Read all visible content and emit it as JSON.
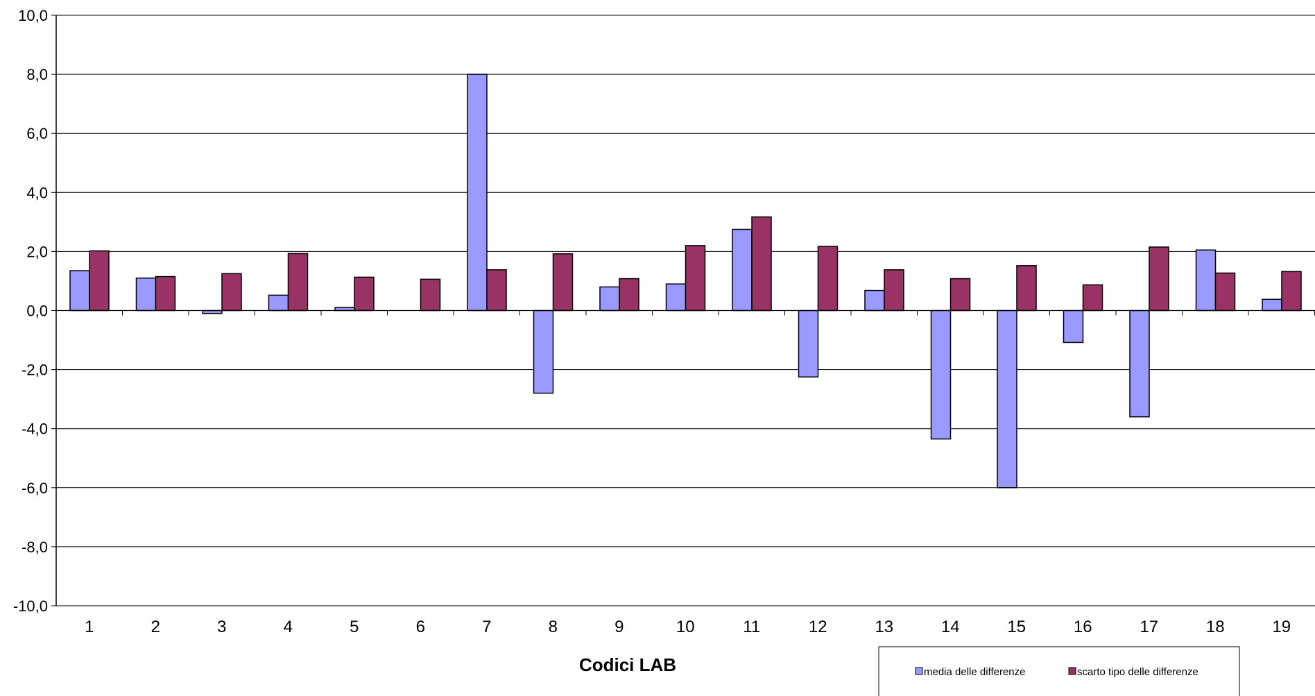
{
  "chart_data": {
    "type": "bar",
    "xlabel": "Codici LAB",
    "ylabel": "",
    "ylim": [
      -10,
      10
    ],
    "yticks": [
      10,
      8,
      6,
      4,
      2,
      0,
      -2,
      -4,
      -6,
      -8,
      -10
    ],
    "ytick_labels": [
      "10,0",
      "8,0",
      "6,0",
      "4,0",
      "2,0",
      "0,0",
      "-2,0",
      "-4,0",
      "-6,0",
      "-8,0",
      "-10,0"
    ],
    "categories": [
      "1",
      "2",
      "3",
      "4",
      "5",
      "6",
      "7",
      "8",
      "9",
      "10",
      "11",
      "12",
      "13",
      "14",
      "15",
      "16",
      "17",
      "18",
      "19"
    ],
    "grid": true,
    "legend_position": "bottom-right",
    "series": [
      {
        "name": "media delle differenze",
        "color": "#9999FF",
        "values": [
          1.35,
          1.1,
          -0.1,
          0.52,
          0.1,
          0.0,
          8.0,
          -2.8,
          0.8,
          0.9,
          2.75,
          -2.25,
          0.68,
          -4.35,
          -6.0,
          -1.08,
          -3.6,
          2.05,
          0.38
        ]
      },
      {
        "name": "scarto tipo delle differenze",
        "color": "#993366",
        "values": [
          2.02,
          1.15,
          1.25,
          1.93,
          1.13,
          1.06,
          1.38,
          1.92,
          1.08,
          2.2,
          3.17,
          2.17,
          1.38,
          1.08,
          1.52,
          0.87,
          2.15,
          1.27,
          1.32
        ]
      }
    ]
  }
}
